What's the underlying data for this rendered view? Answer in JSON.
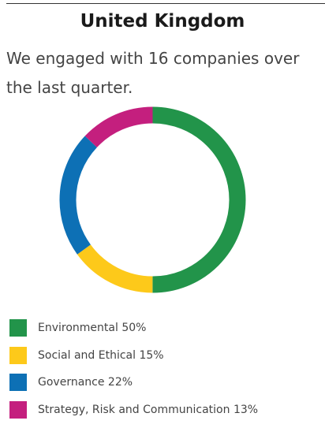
{
  "header": {
    "title": "United Kingdom",
    "intro": "We engaged with 16 companies over the last quarter."
  },
  "chart_data": {
    "type": "pie",
    "style": "donut",
    "categories": [
      "Environmental",
      "Social and Ethical",
      "Governance",
      "Strategy, Risk and Communication"
    ],
    "values": [
      50,
      15,
      22,
      13
    ],
    "unit": "%",
    "colors": [
      "#22944a",
      "#fdc91a",
      "#0d70b5",
      "#c41f7e"
    ],
    "legend_position": "bottom",
    "legend_labels": [
      "Environmental 50%",
      "Social and Ethical 15%",
      "Governance 22%",
      "Strategy, Risk and Communication 13%"
    ]
  }
}
